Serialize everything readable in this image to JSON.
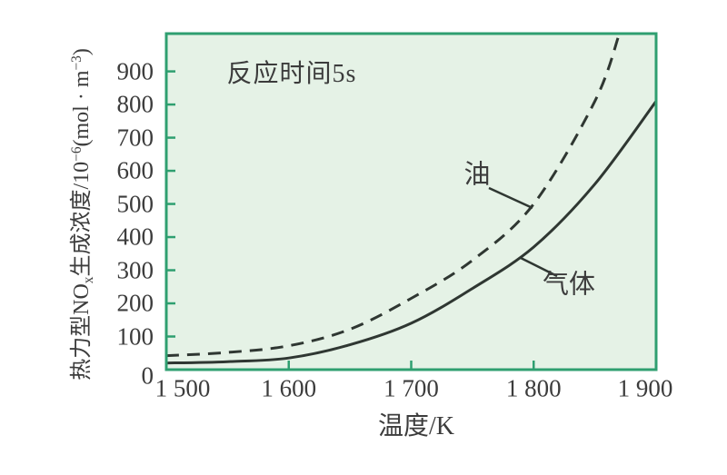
{
  "chart_data": {
    "type": "line",
    "title": "",
    "annotation": "反应时间5s",
    "xlabel": "温度/K",
    "ylabel": "热力型NOx生成浓度/10⁻⁶(mol·m⁻³)",
    "ylabel_parts": [
      {
        "text": "热力型NO",
        "script": ""
      },
      {
        "text": "x",
        "script": "sub"
      },
      {
        "text": "生成浓度/10",
        "script": ""
      },
      {
        "text": "−6",
        "script": "sup"
      },
      {
        "text": "(mol · m",
        "script": ""
      },
      {
        "text": "−3",
        "script": "sup"
      },
      {
        "text": ")",
        "script": ""
      }
    ],
    "xlim": [
      1500,
      1900
    ],
    "ylim": [
      0,
      1014
    ],
    "grid": false,
    "legend_position": "inline-curve-labels",
    "colors": {
      "plot_background": "#e5f2e6",
      "border": "#2f9f70",
      "tick": "#2f9f70",
      "curve": "#2f3732",
      "text": "#3c3c3c"
    },
    "x_ticks": [
      {
        "value": 1500,
        "label": "1 500"
      },
      {
        "value": 1600,
        "label": "1 600"
      },
      {
        "value": 1700,
        "label": "1 700"
      },
      {
        "value": 1800,
        "label": "1 800"
      },
      {
        "value": 1900,
        "label": "1 900"
      }
    ],
    "y_ticks": [
      {
        "value": 0,
        "label": "0"
      },
      {
        "value": 100,
        "label": "100"
      },
      {
        "value": 200,
        "label": "200"
      },
      {
        "value": 300,
        "label": "300"
      },
      {
        "value": 400,
        "label": "400"
      },
      {
        "value": 500,
        "label": "500"
      },
      {
        "value": 600,
        "label": "600"
      },
      {
        "value": 700,
        "label": "700"
      },
      {
        "value": 800,
        "label": "800"
      },
      {
        "value": 900,
        "label": "900"
      }
    ],
    "series": [
      {
        "name": "油",
        "style": "dashed",
        "x": [
          1500,
          1550,
          1600,
          1650,
          1700,
          1750,
          1800,
          1850,
          1870
        ],
        "values": [
          42,
          52,
          72,
          122,
          215,
          330,
          500,
          810,
          1014
        ]
      },
      {
        "name": "气体",
        "style": "solid",
        "x": [
          1500,
          1550,
          1600,
          1650,
          1700,
          1750,
          1800,
          1850,
          1900
        ],
        "values": [
          20,
          24,
          35,
          75,
          140,
          245,
          370,
          560,
          810
        ]
      }
    ],
    "series_labels": [
      {
        "text": "油",
        "x": 525,
        "y": 193,
        "leader": [
          538,
          207,
          586,
          229
        ]
      },
      {
        "text": "气体",
        "x": 626,
        "y": 314,
        "leader": [
          573,
          284,
          613,
          304
        ]
      }
    ],
    "annotation_pos": {
      "x": 321,
      "y": 82
    },
    "xlabel_pos": {
      "x": 458,
      "y": 470
    }
  }
}
